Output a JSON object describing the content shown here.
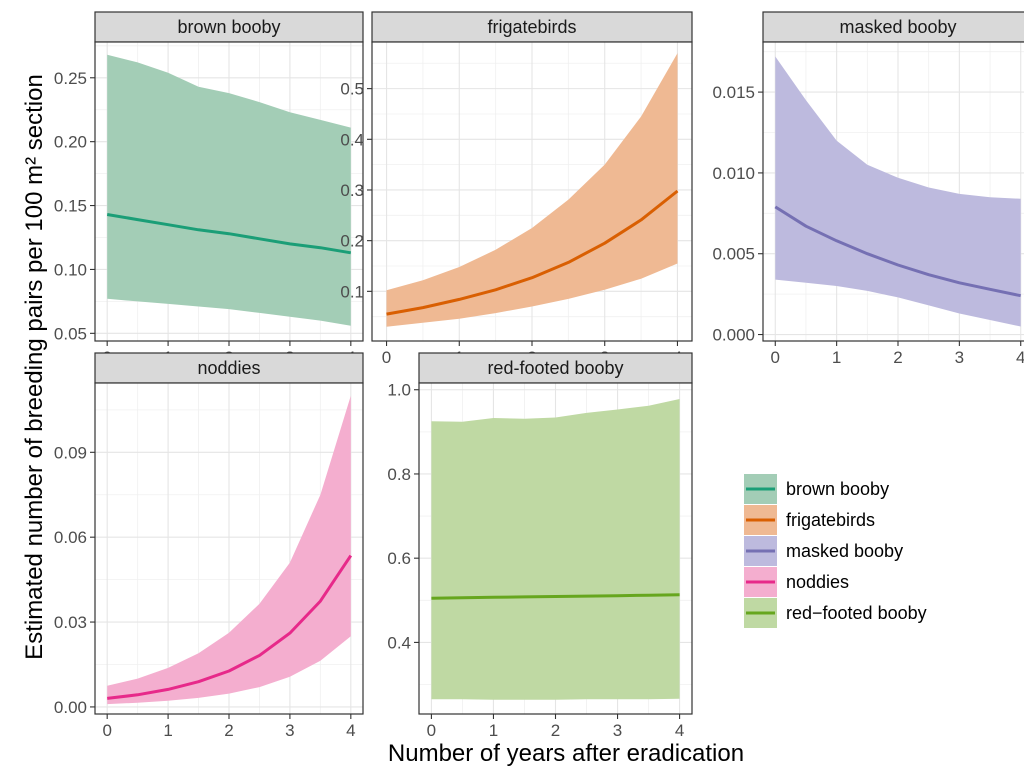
{
  "chart_data": {
    "type": "line",
    "xlabel": "Number of years after eradication",
    "ylabel": "Estimated number of breeding pairs per 100 m² section",
    "legend_position": "right",
    "grid": true,
    "facets": [
      {
        "id": "brown",
        "name": "brown booby",
        "color": "#1b9e77",
        "fill": "#a3cdb6",
        "x": [
          0,
          0.5,
          1,
          1.5,
          2,
          2.5,
          3,
          3.5,
          4
        ],
        "fit": [
          0.143,
          0.139,
          0.135,
          0.131,
          0.128,
          0.124,
          0.12,
          0.117,
          0.113
        ],
        "lower": [
          0.077,
          0.075,
          0.073,
          0.071,
          0.069,
          0.066,
          0.063,
          0.06,
          0.056
        ],
        "upper": [
          0.268,
          0.262,
          0.254,
          0.243,
          0.238,
          0.231,
          0.223,
          0.217,
          0.211
        ],
        "xlim": [
          -0.2,
          4.2
        ],
        "ylim": [
          0.044,
          0.278
        ],
        "xticks": [
          0,
          1,
          2,
          3,
          4
        ],
        "xtick_labels": [
          "0",
          "1",
          "2",
          "3",
          "4"
        ],
        "yticks": [
          0.05,
          0.1,
          0.15,
          0.2,
          0.25
        ],
        "ytick_labels": [
          "0.05",
          "0.10",
          "0.15",
          "0.20",
          "0.25"
        ]
      },
      {
        "id": "frigate",
        "name": "frigatebirds",
        "color": "#d95f02",
        "fill": "#efb993",
        "x": [
          0,
          0.5,
          1,
          1.5,
          2,
          2.5,
          3,
          3.5,
          4
        ],
        "fit": [
          0.055,
          0.068,
          0.084,
          0.103,
          0.127,
          0.157,
          0.195,
          0.241,
          0.298
        ],
        "lower": [
          0.03,
          0.038,
          0.046,
          0.057,
          0.07,
          0.085,
          0.103,
          0.125,
          0.155
        ],
        "upper": [
          0.102,
          0.122,
          0.148,
          0.182,
          0.225,
          0.281,
          0.35,
          0.445,
          0.57
        ],
        "xlim": [
          -0.2,
          4.2
        ],
        "ylim": [
          0.002,
          0.592
        ],
        "xticks": [
          0,
          1,
          2,
          3,
          4
        ],
        "xtick_labels": [
          "0",
          "1",
          "2",
          "3",
          "4"
        ],
        "yticks": [
          0.1,
          0.2,
          0.3,
          0.4,
          0.5
        ],
        "ytick_labels": [
          "0.1",
          "0.2",
          "0.3",
          "0.4",
          "0.5"
        ]
      },
      {
        "id": "masked",
        "name": "masked booby",
        "color": "#7570b3",
        "fill": "#bdbade",
        "x": [
          0,
          0.5,
          1,
          1.5,
          2,
          2.5,
          3,
          3.5,
          4
        ],
        "fit": [
          0.0079,
          0.0067,
          0.0058,
          0.005,
          0.0043,
          0.0037,
          0.0032,
          0.0028,
          0.0024
        ],
        "lower": [
          0.0034,
          0.0032,
          0.003,
          0.0027,
          0.0023,
          0.0018,
          0.0013,
          0.0009,
          0.0005
        ],
        "upper": [
          0.0172,
          0.0145,
          0.012,
          0.0105,
          0.0097,
          0.0091,
          0.0087,
          0.0085,
          0.0084
        ],
        "xlim": [
          -0.2,
          4.2
        ],
        "ylim": [
          -0.0004,
          0.0181
        ],
        "xticks": [
          0,
          1,
          2,
          3,
          4
        ],
        "xtick_labels": [
          "0",
          "1",
          "2",
          "3",
          "4"
        ],
        "yticks": [
          0.0,
          0.005,
          0.01,
          0.015
        ],
        "ytick_labels": [
          "0.000",
          "0.005",
          "0.010",
          "0.015"
        ]
      },
      {
        "id": "noddies",
        "name": "noddies",
        "color": "#e7298a",
        "fill": "#f4aecf",
        "x": [
          0,
          0.5,
          1,
          1.5,
          2,
          2.5,
          3,
          3.5,
          4
        ],
        "fit": [
          0.003,
          0.0043,
          0.0062,
          0.0089,
          0.0127,
          0.0182,
          0.0261,
          0.0374,
          0.0535
        ],
        "lower": [
          0.001,
          0.0015,
          0.0022,
          0.0032,
          0.0047,
          0.007,
          0.0107,
          0.0163,
          0.025
        ],
        "upper": [
          0.0075,
          0.01,
          0.0138,
          0.019,
          0.0262,
          0.0365,
          0.051,
          0.075,
          0.11
        ],
        "xlim": [
          -0.2,
          4.2
        ],
        "ylim": [
          -0.0025,
          0.1145
        ],
        "xticks": [
          0,
          1,
          2,
          3,
          4
        ],
        "xtick_labels": [
          "0",
          "1",
          "2",
          "3",
          "4"
        ],
        "yticks": [
          0.0,
          0.03,
          0.06,
          0.09
        ],
        "ytick_labels": [
          "0.00",
          "0.03",
          "0.06",
          "0.09"
        ]
      },
      {
        "id": "redfooted",
        "name": "red-footed booby",
        "color": "#66a61e",
        "fill": "#bfd9a3",
        "x": [
          0,
          0.5,
          1,
          1.5,
          2,
          2.5,
          3,
          3.5,
          4
        ],
        "fit": [
          0.505,
          0.506,
          0.507,
          0.508,
          0.509,
          0.51,
          0.511,
          0.512,
          0.513
        ],
        "lower": [
          0.265,
          0.265,
          0.264,
          0.264,
          0.264,
          0.265,
          0.265,
          0.265,
          0.266
        ],
        "upper": [
          0.925,
          0.924,
          0.933,
          0.931,
          0.934,
          0.945,
          0.953,
          0.962,
          0.978
        ],
        "xlim": [
          -0.2,
          4.2
        ],
        "ylim": [
          0.23,
          1.016
        ],
        "xticks": [
          0,
          1,
          2,
          3,
          4
        ],
        "xtick_labels": [
          "0",
          "1",
          "2",
          "3",
          "4"
        ],
        "yticks": [
          0.4,
          0.6,
          0.8,
          1.0
        ],
        "ytick_labels": [
          "0.4",
          "0.6",
          "0.8",
          "1.0"
        ]
      }
    ],
    "legend": [
      {
        "label": "brown booby",
        "color": "#1b9e77",
        "fill": "#a3cdb6"
      },
      {
        "label": "frigatebirds",
        "color": "#d95f02",
        "fill": "#efb993"
      },
      {
        "label": "masked booby",
        "color": "#7570b3",
        "fill": "#bdbade"
      },
      {
        "label": "noddies",
        "color": "#e7298a",
        "fill": "#f4aecf"
      },
      {
        "label": "red−footed booby",
        "color": "#66a61e",
        "fill": "#bfd9a3"
      }
    ]
  }
}
